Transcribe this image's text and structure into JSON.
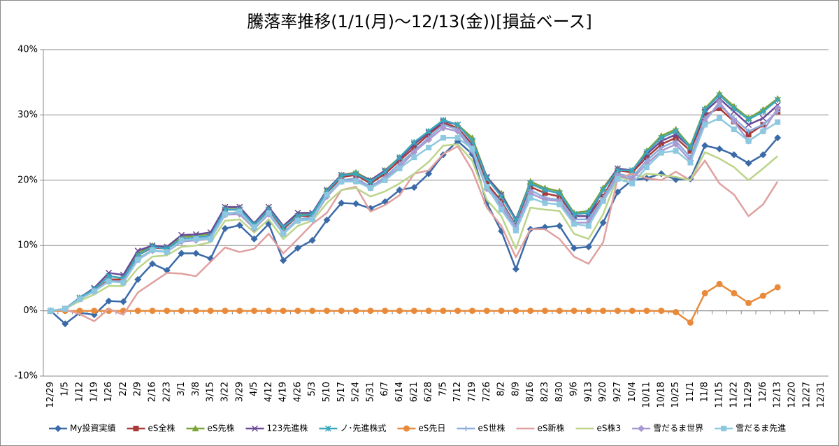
{
  "chart_data": {
    "type": "line",
    "title": "騰落率推移(1/1(月)～12/13(金))[損益ベース]",
    "categories": [
      "12/29",
      "1/5",
      "1/12",
      "1/19",
      "1/26",
      "2/2",
      "2/9",
      "2/16",
      "2/23",
      "3/1",
      "3/8",
      "3/15",
      "3/22",
      "3/29",
      "4/5",
      "4/12",
      "4/19",
      "4/26",
      "5/3",
      "5/10",
      "5/17",
      "5/24",
      "5/31",
      "6/7",
      "6/14",
      "6/21",
      "6/28",
      "7/5",
      "7/12",
      "7/19",
      "7/26",
      "8/2",
      "8/9",
      "8/16",
      "8/23",
      "8/30",
      "9/6",
      "9/13",
      "9/20",
      "9/27",
      "10/4",
      "10/11",
      "10/18",
      "10/25",
      "11/1",
      "11/8",
      "11/15",
      "11/22",
      "11/29",
      "12/6",
      "12/13",
      "12/20",
      "12/27",
      "12/31"
    ],
    "ylim": [
      -10,
      40
    ],
    "yticks": [
      {
        "value": -10,
        "label": "-10%"
      },
      {
        "value": 0,
        "label": "0%"
      },
      {
        "value": 10,
        "label": "10%"
      },
      {
        "value": 20,
        "label": "20%"
      },
      {
        "value": 30,
        "label": "30%"
      },
      {
        "value": 40,
        "label": "40%"
      }
    ],
    "grid": true,
    "legend": "bottom",
    "series": [
      {
        "name": "My投資実績",
        "color": "#3a6aa8",
        "marker": "diamond",
        "values": [
          0,
          -2.0,
          -0.3,
          -0.6,
          1.5,
          1.4,
          4.8,
          7.2,
          6.2,
          8.8,
          8.8,
          8.0,
          12.6,
          13.1,
          11.0,
          13.3,
          7.7,
          9.6,
          10.8,
          13.9,
          16.5,
          16.4,
          15.7,
          16.7,
          18.5,
          18.9,
          21.0,
          23.9,
          26.0,
          24.0,
          16.5,
          12.2,
          6.4,
          12.5,
          12.8,
          13.0,
          9.6,
          9.8,
          13.5,
          18.2,
          20.0,
          20.3,
          21.0,
          20.1,
          20.2,
          25.3,
          24.8,
          23.9,
          22.6,
          23.9,
          26.5,
          null,
          null,
          null
        ]
      },
      {
        "name": "eS全株",
        "color": "#a83a3a",
        "marker": "square",
        "values": [
          0,
          0.3,
          1.8,
          3.0,
          4.8,
          4.8,
          8.5,
          9.7,
          9.5,
          11.0,
          11.2,
          11.5,
          15.5,
          15.5,
          13.0,
          15.5,
          12.5,
          14.5,
          14.5,
          18.0,
          20.5,
          20.8,
          19.5,
          21.0,
          23.0,
          25.0,
          27.0,
          28.8,
          28.0,
          25.5,
          19.5,
          16.8,
          13.0,
          19.0,
          18.0,
          17.5,
          14.5,
          14.5,
          17.5,
          21.5,
          21.2,
          23.5,
          25.5,
          26.5,
          24.5,
          30.0,
          31.0,
          29.0,
          27.0,
          28.5,
          30.5,
          null,
          null,
          null
        ]
      },
      {
        "name": "eS先株",
        "color": "#7ba33a",
        "marker": "triangle",
        "values": [
          0,
          0.3,
          2.0,
          3.3,
          5.3,
          5.0,
          8.8,
          10.0,
          9.7,
          11.3,
          11.5,
          11.8,
          15.8,
          15.8,
          13.3,
          15.8,
          12.8,
          14.8,
          14.8,
          18.5,
          20.8,
          21.2,
          20.0,
          21.5,
          23.5,
          25.8,
          27.5,
          29.2,
          28.5,
          26.5,
          20.5,
          18.0,
          14.0,
          19.8,
          18.8,
          18.3,
          15.0,
          15.3,
          18.8,
          21.8,
          21.5,
          24.5,
          26.8,
          27.8,
          25.2,
          31.0,
          33.3,
          31.3,
          29.5,
          30.8,
          32.5,
          null,
          null,
          null
        ]
      },
      {
        "name": "123先進株",
        "color": "#6a4a98",
        "marker": "x",
        "values": [
          0,
          0.3,
          2.0,
          3.5,
          5.8,
          5.5,
          9.2,
          10.0,
          9.8,
          11.6,
          11.7,
          12.0,
          15.9,
          15.9,
          13.4,
          15.9,
          13.0,
          15.0,
          15.0,
          18.5,
          20.8,
          21.0,
          20.0,
          21.5,
          23.3,
          25.5,
          27.3,
          29.0,
          28.5,
          26.0,
          20.5,
          17.8,
          14.0,
          19.5,
          18.5,
          18.0,
          14.5,
          14.5,
          18.5,
          21.8,
          21.5,
          24.0,
          26.0,
          27.0,
          25.0,
          30.5,
          32.5,
          30.5,
          28.5,
          29.5,
          31.5,
          null,
          null,
          null
        ]
      },
      {
        "name": "ノ･先進株式",
        "color": "#3aa8c0",
        "marker": "asterisk",
        "values": [
          0,
          0.3,
          2.0,
          3.3,
          5.3,
          5.0,
          8.5,
          9.8,
          9.5,
          11.0,
          11.2,
          11.5,
          15.5,
          15.5,
          13.2,
          15.5,
          12.8,
          14.5,
          14.8,
          18.3,
          20.7,
          21.0,
          19.8,
          21.3,
          23.5,
          25.8,
          27.5,
          29.2,
          28.5,
          26.0,
          20.3,
          17.5,
          13.8,
          19.5,
          18.5,
          18.0,
          14.8,
          15.0,
          18.5,
          21.5,
          21.5,
          24.3,
          26.5,
          27.5,
          25.0,
          30.8,
          33.0,
          31.0,
          29.3,
          30.5,
          32.3,
          null,
          null,
          null
        ]
      },
      {
        "name": "eS先日",
        "color": "#e88a3a",
        "marker": "circle",
        "values": [
          0,
          0,
          0,
          0,
          0,
          0,
          0,
          0,
          0,
          0,
          0,
          0,
          0,
          0,
          0,
          0,
          0,
          0,
          0,
          0,
          0,
          0,
          0,
          0,
          0,
          0,
          0,
          0,
          0,
          0,
          0,
          0,
          0,
          0,
          0,
          0,
          0,
          0,
          0,
          0,
          0,
          0,
          0,
          -0.2,
          -1.8,
          2.7,
          4.1,
          2.7,
          1.2,
          2.3,
          3.6,
          null,
          null,
          null
        ]
      },
      {
        "name": "eS世株",
        "color": "#8aaee0",
        "marker": "plus",
        "values": [
          0,
          0.3,
          1.8,
          3.0,
          4.6,
          4.5,
          8.0,
          9.3,
          9.0,
          10.8,
          11.0,
          11.3,
          15.0,
          15.0,
          12.8,
          15.0,
          12.0,
          14.0,
          14.3,
          17.8,
          20.0,
          20.3,
          19.0,
          20.5,
          22.5,
          24.5,
          26.5,
          28.5,
          27.8,
          25.0,
          19.0,
          16.5,
          12.8,
          18.5,
          17.3,
          17.0,
          14.0,
          14.0,
          17.3,
          21.0,
          20.5,
          23.0,
          25.0,
          26.0,
          23.5,
          29.5,
          31.5,
          29.5,
          27.5,
          28.5,
          30.5,
          null,
          null,
          null
        ]
      },
      {
        "name": "eS新株",
        "color": "#e0a0a0",
        "marker": "none",
        "values": [
          0,
          0.2,
          -0.5,
          -1.6,
          0.3,
          -0.6,
          2.8,
          4.3,
          5.8,
          5.7,
          5.3,
          7.5,
          9.7,
          9.0,
          9.5,
          11.8,
          8.8,
          11.0,
          13.3,
          15.0,
          18.5,
          19.0,
          15.2,
          16.2,
          17.7,
          21.0,
          21.5,
          24.0,
          25.2,
          21.5,
          15.8,
          13.0,
          8.2,
          12.5,
          12.5,
          11.0,
          8.3,
          7.2,
          10.5,
          20.3,
          21.0,
          20.3,
          20.0,
          21.3,
          20.0,
          23.0,
          19.5,
          17.8,
          14.5,
          16.3,
          19.8,
          null,
          null,
          null
        ]
      },
      {
        "name": "eS株3",
        "color": "#bcd48a",
        "marker": "none",
        "values": [
          0,
          0.3,
          1.5,
          2.5,
          3.8,
          3.8,
          6.5,
          8.3,
          8.5,
          9.8,
          10.0,
          10.5,
          13.8,
          14.0,
          12.0,
          14.0,
          11.0,
          13.0,
          13.8,
          16.5,
          18.5,
          18.8,
          17.5,
          18.3,
          19.5,
          21.0,
          22.8,
          25.3,
          25.5,
          23.0,
          17.0,
          14.5,
          9.5,
          15.8,
          15.5,
          15.3,
          11.8,
          11.0,
          14.8,
          20.5,
          20.0,
          21.0,
          20.8,
          20.5,
          20.0,
          24.3,
          23.3,
          22.0,
          20.0,
          21.8,
          23.7,
          null,
          null,
          null
        ]
      },
      {
        "name": "雪だるま世界",
        "color": "#a89ad0",
        "marker": "diamond",
        "values": [
          0,
          0.3,
          1.8,
          3.0,
          4.5,
          4.5,
          7.8,
          9.2,
          9.0,
          10.6,
          10.8,
          11.0,
          14.7,
          14.8,
          12.6,
          14.8,
          11.8,
          13.8,
          14.0,
          17.5,
          19.8,
          20.0,
          18.8,
          20.3,
          22.0,
          24.3,
          26.2,
          28.0,
          27.5,
          24.5,
          18.7,
          16.0,
          12.5,
          18.0,
          17.0,
          16.8,
          13.5,
          13.5,
          17.0,
          20.7,
          20.2,
          22.5,
          24.5,
          25.5,
          23.0,
          29.0,
          32.0,
          29.0,
          26.0,
          27.5,
          31.0,
          null,
          null,
          null
        ]
      },
      {
        "name": "雪だるま先進",
        "color": "#8cc8e0",
        "marker": "square",
        "values": [
          0,
          0.3,
          1.8,
          3.0,
          4.5,
          4.3,
          7.8,
          9.3,
          9.0,
          10.8,
          11.0,
          11.0,
          14.8,
          15.2,
          12.8,
          15.0,
          11.8,
          13.8,
          14.0,
          17.8,
          19.8,
          19.8,
          18.8,
          20.0,
          21.8,
          23.5,
          25.0,
          26.5,
          26.5,
          24.8,
          19.0,
          15.5,
          12.3,
          17.3,
          16.5,
          16.3,
          13.3,
          13.0,
          16.8,
          20.2,
          19.5,
          22.0,
          24.2,
          24.5,
          22.7,
          28.5,
          29.5,
          27.8,
          26.0,
          27.5,
          28.9,
          null,
          null,
          null
        ]
      }
    ]
  }
}
